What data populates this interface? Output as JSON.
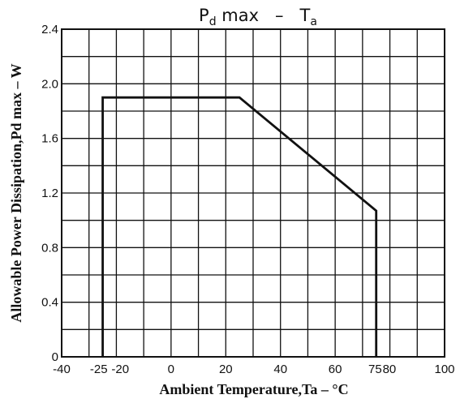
{
  "chart_data": {
    "type": "line",
    "title": {
      "parts": [
        {
          "text": "P",
          "sub": false
        },
        {
          "text": "d",
          "sub": true
        },
        {
          "text": " max   –   T",
          "sub": false
        },
        {
          "text": "a",
          "sub": true
        }
      ]
    },
    "xlabel": "Ambient Temperature,Ta – °C",
    "ylabel": "Allowable Power Dissipation,Pd max – W",
    "xlim": [
      -40,
      100
    ],
    "ylim": [
      0,
      2.4
    ],
    "x_ticks": [
      {
        "value": -40,
        "label": "-40"
      },
      {
        "value": -25,
        "label": "-25"
      },
      {
        "value": -20,
        "label": "-20"
      },
      {
        "value": 0,
        "label": "0"
      },
      {
        "value": 20,
        "label": "20"
      },
      {
        "value": 40,
        "label": "40"
      },
      {
        "value": 60,
        "label": "60"
      },
      {
        "value": 75,
        "label": "75"
      },
      {
        "value": 80,
        "label": "80"
      },
      {
        "value": 100,
        "label": "100"
      }
    ],
    "y_ticks": [
      {
        "value": 0,
        "label": "0"
      },
      {
        "value": 0.4,
        "label": "0.4"
      },
      {
        "value": 0.8,
        "label": "0.8"
      },
      {
        "value": 1.2,
        "label": "1.2"
      },
      {
        "value": 1.6,
        "label": "1.6"
      },
      {
        "value": 2.0,
        "label": "2.0"
      },
      {
        "value": 2.4,
        "label": "2.4"
      }
    ],
    "grid": {
      "x_step": 10,
      "y_step": 0.2
    },
    "series": [
      {
        "x": [
          -25,
          -25,
          25,
          75,
          75
        ],
        "y": [
          0,
          1.9,
          1.9,
          1.07,
          0
        ]
      }
    ]
  }
}
